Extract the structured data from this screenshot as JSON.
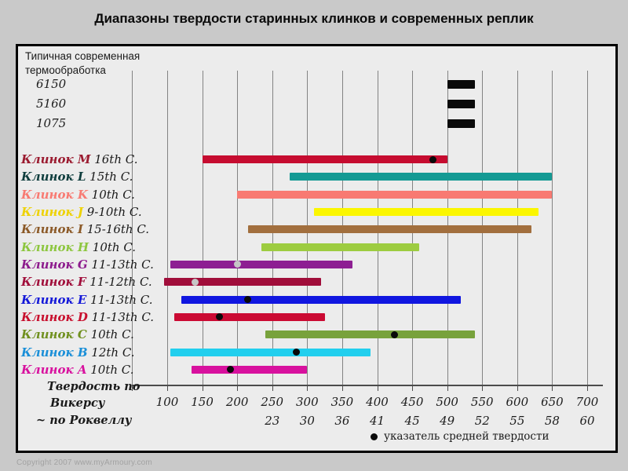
{
  "title": "Диапазоны твердости старинных клинков и современных реплик",
  "header_note": {
    "line1": "Типичная современная",
    "line2": "термообработка"
  },
  "axis": {
    "caption_line1": "Твердость по",
    "caption_line2": "Викерсу",
    "caption_line3": "~ по Роквеллу"
  },
  "legend": {
    "marker": "black-dot",
    "label": "указатель средней твердости"
  },
  "copyright": "Copyright 2007 www.myArmoury.com",
  "colors": {
    "page_background": "#c9c9c9",
    "box_background": "#ececec",
    "gridline": "#838383",
    "mean_dot_black": "#0a0a0a",
    "mean_dot_gray": "#c6c6c6",
    "steel_bar": "#0a0a0a"
  },
  "chart_data": {
    "type": "bar",
    "orientation": "horizontal-range",
    "title": "Диапазоны твердости старинных клинков и современных реплик",
    "xlabel_primary": "Твердость по Викерсу",
    "xlabel_secondary": "~ по Роквеллу",
    "xlim": [
      50,
      700
    ],
    "grid_step": 50,
    "vickers_ticks": [
      100,
      150,
      200,
      250,
      300,
      350,
      400,
      450,
      500,
      550,
      600,
      650,
      700
    ],
    "rockwell_ticks": [
      {
        "vickers": 250,
        "rockwell": "23"
      },
      {
        "vickers": 300,
        "rockwell": "30"
      },
      {
        "vickers": 350,
        "rockwell": "36"
      },
      {
        "vickers": 400,
        "rockwell": "41"
      },
      {
        "vickers": 450,
        "rockwell": "45"
      },
      {
        "vickers": 500,
        "rockwell": "49"
      },
      {
        "vickers": 550,
        "rockwell": "52"
      },
      {
        "vickers": 600,
        "rockwell": "55"
      },
      {
        "vickers": 650,
        "rockwell": "58"
      },
      {
        "vickers": 700,
        "rockwell": "60"
      }
    ],
    "steel_rows": [
      {
        "name": "6150",
        "range_hv": [
          500,
          540
        ]
      },
      {
        "name": "5160",
        "range_hv": [
          500,
          540
        ]
      },
      {
        "name": "1075",
        "range_hv": [
          500,
          540
        ]
      }
    ],
    "blade_rows": [
      {
        "name": "Клинок M",
        "period": "16th C.",
        "range_hv": [
          150,
          500
        ],
        "mean_hv": 480,
        "mean_dot": "black",
        "bar_color": "#c60c30",
        "label_color": "#9b1b30"
      },
      {
        "name": "Клинок L",
        "period": "15th C.",
        "range_hv": [
          275,
          650
        ],
        "mean_hv": null,
        "mean_dot": null,
        "bar_color": "#149a94",
        "label_color": "#0e3d3d"
      },
      {
        "name": "Клинок K",
        "period": "10th C.",
        "range_hv": [
          200,
          650
        ],
        "mean_hv": null,
        "mean_dot": null,
        "bar_color": "#f87a72",
        "label_color": "#f87a72"
      },
      {
        "name": "Клинок J",
        "period": "9-10th C.",
        "range_hv": [
          310,
          630
        ],
        "mean_hv": null,
        "mean_dot": null,
        "bar_color": "#fbf600",
        "label_color": "#eed202"
      },
      {
        "name": "Клинок I",
        "period": "15-16th C.",
        "range_hv": [
          215,
          620
        ],
        "mean_hv": null,
        "mean_dot": null,
        "bar_color": "#a26f3e",
        "label_color": "#8c5a28"
      },
      {
        "name": "Клинок H",
        "period": "10th C.",
        "range_hv": [
          235,
          460
        ],
        "mean_hv": null,
        "mean_dot": null,
        "bar_color": "#9dcc40",
        "label_color": "#8dc63f"
      },
      {
        "name": "Клинок G",
        "period": "11-13th C.",
        "range_hv": [
          105,
          365
        ],
        "mean_hv": 200,
        "mean_dot": "gray",
        "bar_color": "#8d1f92",
        "label_color": "#8d1b8d"
      },
      {
        "name": "Клинок F",
        "period": "11-12th C.",
        "range_hv": [
          95,
          320
        ],
        "mean_hv": 140,
        "mean_dot": "gray",
        "bar_color": "#a00d3a",
        "label_color": "#a00d3a"
      },
      {
        "name": "Клинок E",
        "period": "11-13th C.",
        "range_hv": [
          120,
          520
        ],
        "mean_hv": 215,
        "mean_dot": "black",
        "bar_color": "#1016e0",
        "label_color": "#1418d8"
      },
      {
        "name": "Клинок D",
        "period": "11-13th C.",
        "range_hv": [
          110,
          325
        ],
        "mean_hv": 175,
        "mean_dot": "black",
        "bar_color": "#cb0a33",
        "label_color": "#c8102e"
      },
      {
        "name": "Клинок C",
        "period": "10th C.",
        "range_hv": [
          240,
          540
        ],
        "mean_hv": 425,
        "mean_dot": "black",
        "bar_color": "#78a23c",
        "label_color": "#70901f"
      },
      {
        "name": "Клинок B",
        "period": "12th C.",
        "range_hv": [
          105,
          390
        ],
        "mean_hv": 285,
        "mean_dot": "black",
        "bar_color": "#22cfee",
        "label_color": "#1a8fd8"
      },
      {
        "name": "Клинок A",
        "period": "10th C.",
        "range_hv": [
          135,
          300
        ],
        "mean_hv": 190,
        "mean_dot": "black",
        "bar_color": "#d8119e",
        "label_color": "#d8119e"
      }
    ]
  }
}
